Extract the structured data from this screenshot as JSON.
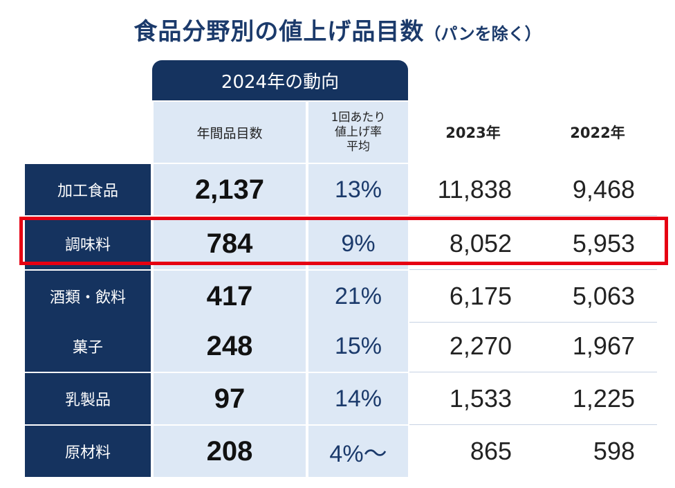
{
  "title": {
    "main": "食品分野別の値上げ品目数",
    "sub": "（パンを除く）"
  },
  "group_header": "2024年の動向",
  "columns": {
    "annual_count": "年間品目数",
    "rate_line1": "1回あたり",
    "rate_line2": "値上げ率",
    "rate_line3": "平均",
    "y2023": "2023年",
    "y2022": "2022年"
  },
  "rows": [
    {
      "category": "加工食品",
      "count_2024": "2,137",
      "avg_rate": "13%",
      "y2023": "11,838",
      "y2022": "9,468"
    },
    {
      "category": "調味料",
      "count_2024": "784",
      "avg_rate": "9%",
      "y2023": "8,052",
      "y2022": "5,953"
    },
    {
      "category": "酒類・飲料",
      "count_2024": "417",
      "avg_rate": "21%",
      "y2023": "6,175",
      "y2022": "5,063"
    },
    {
      "category": "菓子",
      "count_2024": "248",
      "avg_rate": "15%",
      "y2023": "2,270",
      "y2022": "1,967"
    },
    {
      "category": "乳製品",
      "count_2024": "97",
      "avg_rate": "14%",
      "y2023": "1,533",
      "y2022": "1,225"
    },
    {
      "category": "原材料",
      "count_2024": "208",
      "avg_rate": "4%～",
      "y2023": "865",
      "y2022": "598"
    }
  ],
  "highlighted_row": "調味料",
  "colors": {
    "navy": "#15335f",
    "light_blue": "#dde8f5",
    "highlight_red": "#e60012"
  }
}
